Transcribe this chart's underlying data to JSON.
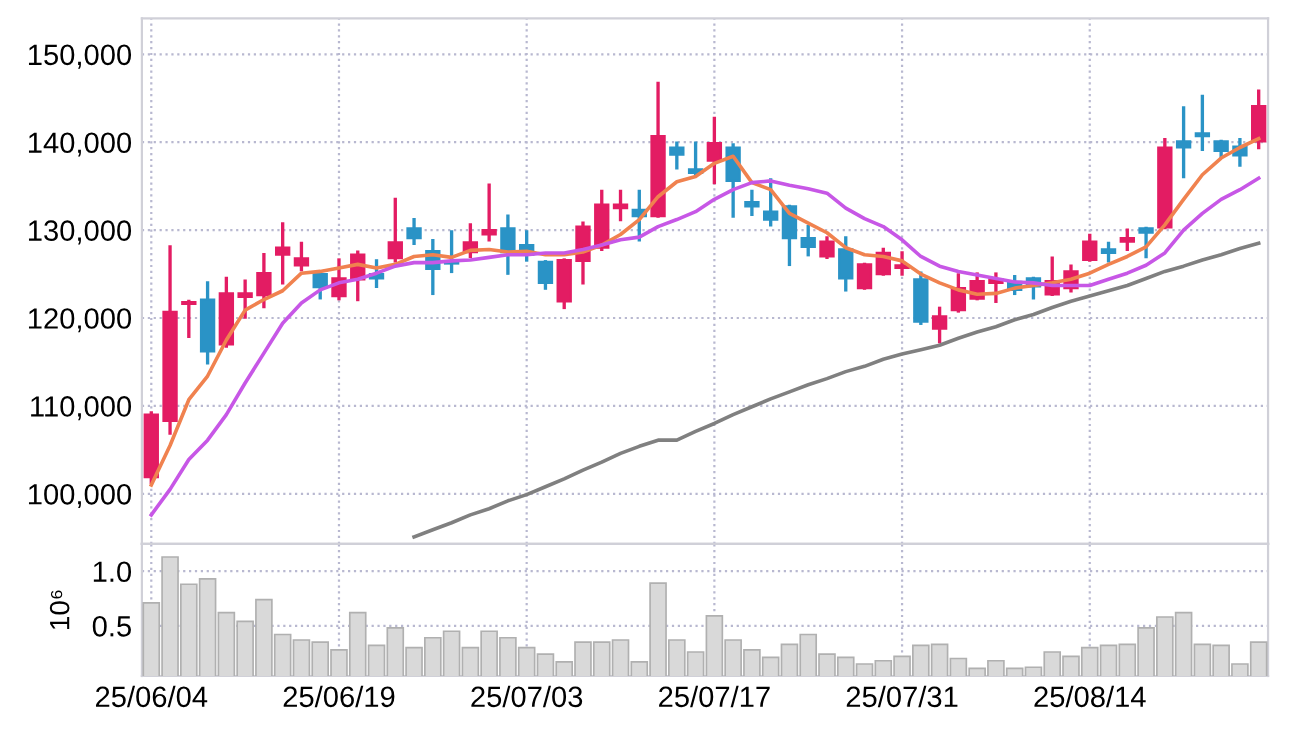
{
  "chart_data": [
    {
      "type": "candlestick",
      "categories": [
        null,
        null,
        null,
        null,
        null,
        null,
        null,
        null,
        null,
        null,
        null,
        null,
        null,
        null,
        null,
        null,
        null,
        null,
        null,
        null,
        null,
        null,
        null,
        null,
        null,
        null,
        null,
        null,
        null,
        null,
        null,
        null,
        null,
        null,
        null,
        null,
        null,
        null,
        null,
        null,
        null,
        null,
        null,
        null,
        null,
        null,
        null,
        null,
        null,
        null,
        null,
        null,
        null,
        null,
        null,
        null,
        null,
        null,
        null,
        null
      ],
      "ohlc": [
        [
          101900,
          109200,
          101300,
          109000
        ],
        [
          108300,
          128100,
          106900,
          120700
        ],
        [
          121600,
          121900,
          117900,
          121800
        ],
        [
          122100,
          124000,
          114900,
          116200
        ],
        [
          117000,
          124500,
          116800,
          122800
        ],
        [
          122400,
          124200,
          120100,
          122800
        ],
        [
          122600,
          127200,
          121300,
          125100
        ],
        [
          127200,
          130700,
          124000,
          128000
        ],
        [
          126000,
          128500,
          125500,
          126800
        ],
        [
          125000,
          125000,
          122300,
          123500
        ],
        [
          122500,
          126600,
          122200,
          124500
        ],
        [
          124400,
          127500,
          122100,
          127200
        ],
        [
          125000,
          126500,
          123600,
          124500
        ],
        [
          126800,
          133500,
          126500,
          128600
        ],
        [
          130200,
          131200,
          128500,
          129100
        ],
        [
          127600,
          128800,
          122800,
          125600
        ],
        [
          126400,
          129800,
          125300,
          126200
        ],
        [
          127500,
          130600,
          127000,
          128600
        ],
        [
          129500,
          135100,
          128900,
          130000
        ],
        [
          130200,
          131600,
          125100,
          127500
        ],
        [
          128300,
          129800,
          126600,
          127200
        ],
        [
          126400,
          126400,
          123400,
          124000
        ],
        [
          121900,
          126600,
          121200,
          126600
        ],
        [
          126500,
          130800,
          124000,
          130400
        ],
        [
          128000,
          134400,
          127800,
          132900
        ],
        [
          132500,
          134400,
          131200,
          132900
        ],
        [
          132300,
          134400,
          128900,
          131600
        ],
        [
          131600,
          146700,
          131600,
          140700
        ],
        [
          139400,
          139900,
          137100,
          138600
        ],
        [
          136900,
          139900,
          136300,
          136500
        ],
        [
          137900,
          142700,
          135400,
          139900
        ],
        [
          139400,
          139700,
          131600,
          135600
        ],
        [
          133200,
          134400,
          131800,
          132700
        ],
        [
          132100,
          135700,
          130600,
          131200
        ],
        [
          132700,
          132700,
          126100,
          129100
        ],
        [
          129100,
          130400,
          127200,
          128100
        ],
        [
          127000,
          129100,
          126900,
          128700
        ],
        [
          127800,
          129100,
          123200,
          124500
        ],
        [
          123400,
          126100,
          123400,
          126100
        ],
        [
          125000,
          127800,
          125000,
          127400
        ],
        [
          125700,
          127400,
          125000,
          126000
        ],
        [
          124400,
          125100,
          119400,
          119600
        ],
        [
          118800,
          121100,
          117300,
          120200
        ],
        [
          120900,
          124900,
          120800,
          123400
        ],
        [
          122200,
          125000,
          122200,
          124200
        ],
        [
          124000,
          125000,
          121900,
          124400
        ],
        [
          124100,
          124700,
          122800,
          123200
        ],
        [
          124500,
          124500,
          122300,
          123600
        ],
        [
          122700,
          126800,
          122700,
          124200
        ],
        [
          123400,
          125900,
          123100,
          125300
        ],
        [
          126600,
          129400,
          126600,
          128700
        ],
        [
          127800,
          128500,
          126500,
          127400
        ],
        [
          128700,
          130000,
          127800,
          129100
        ],
        [
          130200,
          130200,
          127000,
          129700
        ],
        [
          130300,
          140300,
          130300,
          139400
        ],
        [
          140100,
          143900,
          136100,
          139400
        ],
        [
          141000,
          145200,
          139200,
          140700
        ],
        [
          140100,
          140100,
          138400,
          139000
        ],
        [
          139500,
          140300,
          137400,
          138500
        ],
        [
          140100,
          145800,
          139400,
          144100
        ]
      ],
      "colors": [
        "#e31c63",
        "#e31c63",
        "#e31c63",
        "#2a93c6",
        "#e31c63",
        "#e31c63",
        "#e31c63",
        "#e31c63",
        "#e31c63",
        "#2a93c6",
        "#e31c63",
        "#e31c63",
        "#2a93c6",
        "#e31c63",
        "#2a93c6",
        "#2a93c6",
        "#2a93c6",
        "#e31c63",
        "#e31c63",
        "#2a93c6",
        "#2a93c6",
        "#2a93c6",
        "#e31c63",
        "#e31c63",
        "#e31c63",
        "#e31c63",
        "#2a93c6",
        "#e31c63",
        "#2a93c6",
        "#2a93c6",
        "#e31c63",
        "#2a93c6",
        "#2a93c6",
        "#2a93c6",
        "#2a93c6",
        "#2a93c6",
        "#e31c63",
        "#2a93c6",
        "#e31c63",
        "#e31c63",
        "#e31c63",
        "#2a93c6",
        "#e31c63",
        "#e31c63",
        "#e31c63",
        "#e31c63",
        "#2a93c6",
        "#2a93c6",
        "#e31c63",
        "#e31c63",
        "#e31c63",
        "#2a93c6",
        "#e31c63",
        "#2a93c6",
        "#e31c63",
        "#2a93c6",
        "#2a93c6",
        "#2a93c6",
        "#2a93c6",
        "#e31c63"
      ],
      "series": [
        {
          "type": "line",
          "color": "#f0824f",
          "values": [
            101000,
            105500,
            110700,
            113400,
            117500,
            120900,
            122100,
            123100,
            125100,
            125300,
            125700,
            126100,
            125700,
            126100,
            127000,
            127200,
            126900,
            127700,
            127800,
            127500,
            127600,
            127200,
            127200,
            127500,
            128300,
            129500,
            131200,
            133800,
            135500,
            136100,
            137600,
            138400,
            135400,
            134600,
            131900,
            130800,
            129700,
            128000,
            127200,
            127000,
            126500,
            125000,
            124000,
            123200,
            122700,
            122800,
            123400,
            123700,
            124000,
            124400,
            125100,
            126100,
            127000,
            128100,
            130600,
            133500,
            136300,
            138200,
            139400,
            140400
          ]
        },
        {
          "type": "line",
          "color": "#c757e6",
          "values": [
            97600,
            100500,
            103900,
            106100,
            109000,
            112600,
            116000,
            119400,
            121700,
            123200,
            124000,
            124400,
            125100,
            125900,
            126300,
            126300,
            126500,
            126600,
            126900,
            127200,
            127200,
            127400,
            127400,
            127800,
            128300,
            128900,
            129200,
            130400,
            131200,
            132100,
            133500,
            134600,
            135400,
            135600,
            135100,
            134700,
            134200,
            132500,
            131300,
            130400,
            128900,
            127000,
            125900,
            125300,
            124900,
            124500,
            124100,
            124000,
            123700,
            123700,
            123700,
            124400,
            125100,
            126000,
            127400,
            130000,
            131900,
            133500,
            134600,
            135900
          ]
        },
        {
          "type": "line",
          "color": "#808080",
          "values": [
            null,
            null,
            null,
            null,
            null,
            null,
            null,
            null,
            null,
            null,
            null,
            null,
            null,
            null,
            95100,
            95900,
            96700,
            97600,
            98300,
            99200,
            99900,
            100800,
            101700,
            102700,
            103600,
            104600,
            105400,
            106100,
            106100,
            107100,
            108000,
            109000,
            109900,
            110800,
            111600,
            112400,
            113100,
            113900,
            114500,
            115300,
            115900,
            116400,
            116900,
            117700,
            118400,
            119000,
            119800,
            120400,
            121200,
            121900,
            122500,
            123100,
            123700,
            124500,
            125300,
            125900,
            126600,
            127200,
            127900,
            128500
          ]
        }
      ],
      "ylim": [
        94300,
        154100
      ],
      "yticks": [
        {
          "value": 100000,
          "label": "100,000"
        },
        {
          "value": 110000,
          "label": "110,000"
        },
        {
          "value": 120000,
          "label": "120,000"
        },
        {
          "value": 130000,
          "label": "130,000"
        },
        {
          "value": 140000,
          "label": "140,000"
        },
        {
          "value": 150000,
          "label": "150,000"
        }
      ],
      "grid": true,
      "line_style": "solid",
      "tick_labels": "y"
    },
    {
      "type": "bar",
      "ylabel": "10⁶",
      "color": "#d9d9d9",
      "categories": [
        "25/06/04",
        null,
        null,
        null,
        null,
        null,
        null,
        null,
        null,
        null,
        "25/06/19",
        null,
        null,
        null,
        null,
        null,
        null,
        null,
        null,
        null,
        "25/07/03",
        null,
        null,
        null,
        null,
        null,
        null,
        null,
        null,
        null,
        "25/07/17",
        null,
        null,
        null,
        null,
        null,
        null,
        null,
        null,
        null,
        "25/07/31",
        null,
        null,
        null,
        null,
        null,
        null,
        null,
        null,
        null,
        "25/08/14",
        null,
        null,
        null,
        null,
        null,
        null,
        null,
        null,
        null
      ],
      "values": [
        0.71,
        1.13,
        0.88,
        0.93,
        0.62,
        0.54,
        0.74,
        0.42,
        0.37,
        0.35,
        0.28,
        0.62,
        0.32,
        0.48,
        0.3,
        0.39,
        0.45,
        0.3,
        0.45,
        0.39,
        0.3,
        0.24,
        0.17,
        0.35,
        0.35,
        0.37,
        0.17,
        0.89,
        0.37,
        0.26,
        0.59,
        0.37,
        0.28,
        0.21,
        0.33,
        0.42,
        0.24,
        0.21,
        0.15,
        0.18,
        0.22,
        0.32,
        0.33,
        0.2,
        0.11,
        0.18,
        0.11,
        0.12,
        0.26,
        0.22,
        0.3,
        0.32,
        0.33,
        0.48,
        0.58,
        0.62,
        0.33,
        0.32,
        0.15,
        0.35
      ],
      "ylim": [
        0.04,
        1.25
      ],
      "yticks": [
        0.5,
        {
          "value": 1,
          "label": "1.0"
        }
      ],
      "grid": true
    }
  ]
}
